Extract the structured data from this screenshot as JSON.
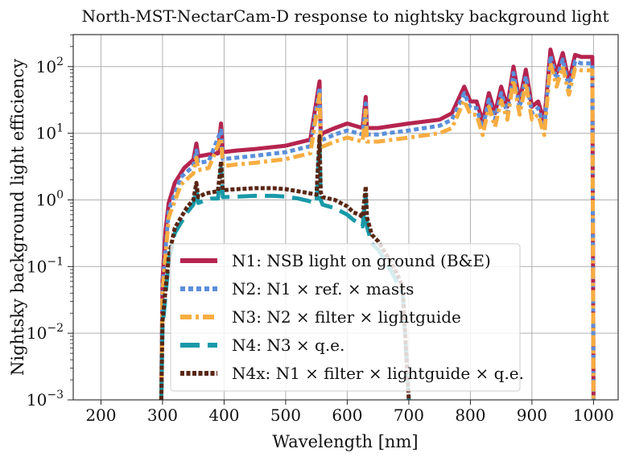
{
  "chart_data": {
    "type": "line",
    "title": "North-MST-NectarCam-D response to nightsky background light",
    "xlabel": "Wavelength [nm]",
    "ylabel": "Nightsky background light efficiency",
    "xlim": [
      155,
      1040
    ],
    "ylim_log10": [
      -3,
      2.48
    ],
    "yscale": "log",
    "grid": true,
    "legend_position": "lower-center",
    "x_ticks": [
      200,
      300,
      400,
      500,
      600,
      700,
      800,
      900,
      1000
    ],
    "x_tick_labels": [
      "200",
      "300",
      "400",
      "500",
      "600",
      "700",
      "800",
      "900",
      "1000"
    ],
    "y_ticks_log10": [
      -3,
      -2,
      -1,
      0,
      1,
      2
    ],
    "y_tick_labels": [
      {
        "base": "10",
        "exp": "−3"
      },
      {
        "base": "10",
        "exp": "−2"
      },
      {
        "base": "10",
        "exp": "−1"
      },
      {
        "base": "10",
        "exp": "0"
      },
      {
        "base": "10",
        "exp": "1"
      },
      {
        "base": "10",
        "exp": "2"
      }
    ],
    "series": [
      {
        "name": "N1: NSB light on ground (B&E)",
        "color": "#b5244f",
        "style": "solid",
        "x": [
          298,
          300,
          305,
          310,
          320,
          335,
          350,
          355,
          358,
          375,
          390,
          395,
          398,
          420,
          450,
          500,
          540,
          555,
          557,
          560,
          580,
          600,
          625,
          630,
          632,
          650,
          700,
          750,
          770,
          790,
          800,
          810,
          820,
          830,
          840,
          850,
          860,
          870,
          880,
          890,
          900,
          910,
          920,
          930,
          940,
          950,
          960,
          970,
          980,
          995,
          998,
          1000
        ],
        "y": [
          0.001,
          0.06,
          0.35,
          0.9,
          1.8,
          3.0,
          4.0,
          7.0,
          4.5,
          4.8,
          5.0,
          14.0,
          5.2,
          5.5,
          5.8,
          6.5,
          8.0,
          60.0,
          9.0,
          10.0,
          12.0,
          14.0,
          12.0,
          35.0,
          12.0,
          12.0,
          14.0,
          16.0,
          20.0,
          50.0,
          30.0,
          30.0,
          15.0,
          40.0,
          20.0,
          50.0,
          25.0,
          100.0,
          30.0,
          90.0,
          25.0,
          30.0,
          15.0,
          180.0,
          80.0,
          160.0,
          60.0,
          150.0,
          140.0,
          140.0,
          140.0,
          0.001
        ]
      },
      {
        "name": "N2: N1 × ref. × masts",
        "color": "#5a8fdb",
        "style": "dotted",
        "x": [
          298,
          300,
          310,
          330,
          350,
          355,
          358,
          375,
          395,
          398,
          420,
          450,
          500,
          540,
          555,
          557,
          560,
          580,
          600,
          625,
          630,
          632,
          650,
          700,
          750,
          770,
          790,
          800,
          810,
          820,
          830,
          840,
          850,
          860,
          870,
          880,
          890,
          900,
          910,
          920,
          930,
          940,
          950,
          960,
          970,
          980,
          995,
          998,
          1000
        ],
        "y": [
          0.001,
          0.05,
          0.7,
          2.2,
          3.2,
          5.5,
          3.6,
          3.8,
          11.0,
          4.1,
          4.3,
          4.6,
          5.2,
          6.4,
          48.0,
          7.2,
          8.0,
          9.6,
          11.0,
          9.6,
          28.0,
          9.6,
          9.6,
          11.0,
          13.0,
          16.0,
          40.0,
          24.0,
          24.0,
          12.0,
          32.0,
          16.0,
          40.0,
          20.0,
          80.0,
          24.0,
          72.0,
          20.0,
          24.0,
          12.0,
          145.0,
          64.0,
          128.0,
          48.0,
          120.0,
          112.0,
          112.0,
          112.0,
          0.001
        ]
      },
      {
        "name": "N3: N2 × filter × lightguide",
        "color": "#f7ad41",
        "style": "dashdot",
        "x": [
          298,
          300,
          310,
          330,
          350,
          355,
          358,
          375,
          395,
          398,
          420,
          450,
          500,
          540,
          555,
          557,
          560,
          580,
          600,
          625,
          630,
          632,
          650,
          700,
          750,
          770,
          790,
          800,
          810,
          820,
          830,
          840,
          850,
          860,
          870,
          880,
          890,
          900,
          910,
          920,
          930,
          940,
          950,
          960,
          970,
          980,
          995,
          998,
          1000
        ],
        "y": [
          0.001,
          0.04,
          0.55,
          1.7,
          2.5,
          4.3,
          2.8,
          3.0,
          8.5,
          3.2,
          3.4,
          3.6,
          4.1,
          5.0,
          38.0,
          5.6,
          6.3,
          7.5,
          8.6,
          7.5,
          22.0,
          7.5,
          7.5,
          8.6,
          10.0,
          12.0,
          31.0,
          19.0,
          19.0,
          9.4,
          25.0,
          12.5,
          31.0,
          16.0,
          63.0,
          19.0,
          56.0,
          16.0,
          19.0,
          9.4,
          113.0,
          50.0,
          100.0,
          38.0,
          94.0,
          88.0,
          88.0,
          88.0,
          0.001
        ]
      },
      {
        "name": "N4: N3 × q.e.",
        "color": "#1999a8",
        "style": "dashed",
        "x": [
          298,
          300,
          310,
          320,
          340,
          350,
          355,
          358,
          370,
          380,
          390,
          395,
          398,
          420,
          450,
          480,
          500,
          520,
          540,
          550,
          555,
          557,
          560,
          580,
          600,
          610,
          620,
          625,
          630,
          632,
          640,
          650,
          660,
          670,
          680,
          690,
          700
        ],
        "y": [
          0.001,
          0.012,
          0.12,
          0.32,
          0.65,
          0.85,
          1.5,
          0.9,
          1.0,
          1.05,
          1.05,
          3.0,
          1.1,
          1.12,
          1.15,
          1.15,
          1.12,
          1.05,
          0.95,
          0.9,
          7.0,
          1.0,
          0.85,
          0.75,
          0.6,
          0.5,
          0.45,
          0.4,
          1.2,
          0.4,
          0.22,
          0.18,
          0.13,
          0.09,
          0.06,
          0.04,
          0.001
        ]
      },
      {
        "name": "N4x: N1 × filter × lightguide × q.e.",
        "color": "#5a2614",
        "style": "densedot",
        "x": [
          298,
          300,
          310,
          320,
          340,
          350,
          355,
          358,
          370,
          380,
          390,
          395,
          398,
          420,
          450,
          480,
          500,
          520,
          540,
          550,
          555,
          557,
          560,
          580,
          600,
          610,
          620,
          625,
          630,
          632,
          640,
          650,
          660,
          670,
          680,
          690,
          700
        ],
        "y": [
          0.001,
          0.015,
          0.14,
          0.38,
          0.78,
          1.0,
          1.8,
          1.1,
          1.25,
          1.3,
          1.35,
          3.8,
          1.4,
          1.45,
          1.5,
          1.5,
          1.45,
          1.35,
          1.25,
          1.2,
          9.0,
          1.3,
          1.1,
          1.0,
          0.8,
          0.65,
          0.6,
          0.55,
          1.6,
          0.55,
          0.3,
          0.24,
          0.17,
          0.12,
          0.08,
          0.05,
          0.001
        ]
      }
    ]
  }
}
